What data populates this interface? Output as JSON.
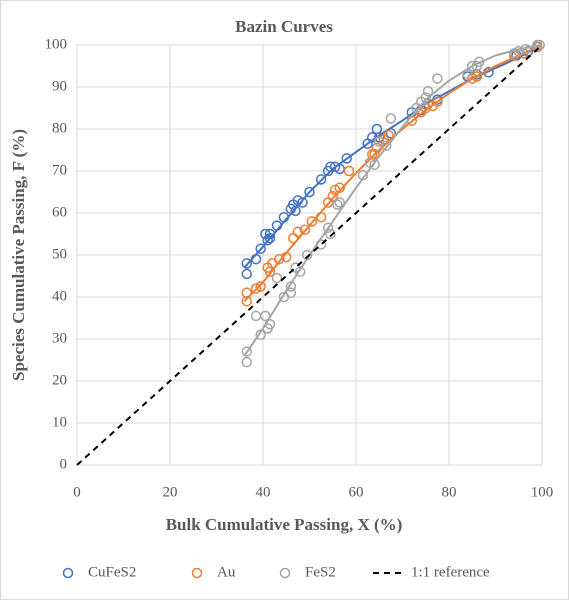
{
  "chart_data": {
    "type": "scatter",
    "title": "Bazin Curves",
    "x_label": "Bulk Cumulative Passing, X (%)",
    "y_label": "Species Cumulative Passing, F (%)",
    "xlim": [
      0,
      100
    ],
    "ylim": [
      0,
      100
    ],
    "xticks": [
      0,
      20,
      40,
      60,
      80,
      100
    ],
    "yticks": [
      0,
      10,
      20,
      30,
      40,
      50,
      60,
      70,
      80,
      90,
      100
    ],
    "grid": true,
    "legend": "bottom",
    "series": [
      {
        "name": "CuFeS2",
        "color": "#4472c4",
        "x": [
          36.5,
          36.5,
          38.5,
          39.5,
          40.5,
          41,
          41.5,
          41.5,
          43,
          44.5,
          46,
          46.5,
          47,
          47.5,
          48.5,
          50,
          52.5,
          54,
          54.5,
          55.5,
          56.5,
          58,
          62.5,
          63.5,
          64.5,
          65,
          66,
          67.5,
          72,
          74,
          75.5,
          77.5,
          84,
          86,
          88.5,
          94.5,
          97,
          99
        ],
        "values": [
          48,
          45.5,
          49,
          51.5,
          55,
          53.5,
          54,
          55,
          57,
          59,
          61,
          62,
          60.5,
          63,
          62.5,
          65,
          68,
          70,
          71,
          71,
          70.5,
          73,
          76.5,
          78,
          80,
          78,
          77.5,
          79,
          84,
          84.5,
          86,
          87,
          92.5,
          93,
          93.5,
          97.5,
          98.5,
          99.5
        ],
        "curve": {
          "x": [
            36,
            40,
            45,
            50,
            55,
            60,
            65,
            70,
            75,
            80,
            85,
            90,
            95,
            100
          ],
          "values": [
            47,
            52,
            58.5,
            65,
            70.5,
            74.5,
            78.5,
            82,
            86,
            89,
            92,
            94.5,
            97,
            100
          ]
        }
      },
      {
        "name": "Au",
        "color": "#ed7d31",
        "x": [
          36.5,
          36.5,
          38.5,
          39.5,
          41,
          41.5,
          42,
          43.5,
          45,
          46.5,
          47.5,
          49,
          50.5,
          52.5,
          54,
          55,
          55.5,
          56.5,
          58.5,
          63.5,
          64,
          64.5,
          66,
          67,
          72,
          74,
          75,
          76.5,
          77.5,
          85,
          86,
          94,
          96,
          99
        ],
        "values": [
          39,
          41,
          42,
          42.5,
          47,
          46,
          48,
          49,
          49.5,
          54,
          55.5,
          56,
          58,
          59,
          62.5,
          64,
          65.5,
          66,
          70,
          74,
          74,
          75.5,
          77.5,
          78.5,
          82,
          84,
          85,
          85.5,
          86.5,
          92,
          92.5,
          97.5,
          98,
          99.5
        ],
        "curve": {
          "x": [
            36,
            40,
            45,
            50,
            55,
            60,
            65,
            70,
            75,
            80,
            85,
            90,
            95,
            100
          ],
          "values": [
            39,
            43.5,
            50.5,
            57,
            63.5,
            69.5,
            75,
            80,
            84.5,
            88.5,
            92,
            95,
            97.5,
            100
          ]
        }
      },
      {
        "name": "FeS2",
        "color": "#a5a5a5",
        "x": [
          36.5,
          36.5,
          38.5,
          39.5,
          40.5,
          41,
          41.5,
          43,
          44.5,
          46,
          46,
          47,
          48,
          49.5,
          52.5,
          54,
          54.5,
          56,
          56.5,
          61.5,
          63,
          64,
          65,
          66.5,
          67.5,
          73,
          74,
          75,
          75.5,
          77.5,
          84,
          85,
          86,
          86.5,
          94,
          95,
          96.5,
          99,
          99.5
        ],
        "values": [
          27,
          24.5,
          35.5,
          31,
          35.5,
          32.5,
          33.5,
          44.5,
          40,
          41,
          42.5,
          47,
          46,
          50,
          52.5,
          56.5,
          55,
          62,
          62.5,
          69,
          72,
          71.5,
          77,
          76,
          82.5,
          85,
          86.5,
          87.5,
          89,
          92,
          93,
          95,
          95,
          96,
          98,
          98.5,
          99,
          100,
          100
        ],
        "curve": {
          "x": [
            36,
            40,
            45,
            50,
            55,
            60,
            65,
            70,
            75,
            80,
            85,
            90,
            95,
            100
          ],
          "values": [
            26,
            32.5,
            41.5,
            50,
            58,
            66,
            73.5,
            80.5,
            87,
            91.5,
            95,
            97.5,
            99,
            100
          ]
        }
      },
      {
        "name": "1:1 reference",
        "color": "#000000",
        "style": "dashed",
        "x": [
          0,
          100
        ],
        "values": [
          0,
          100
        ]
      }
    ]
  }
}
